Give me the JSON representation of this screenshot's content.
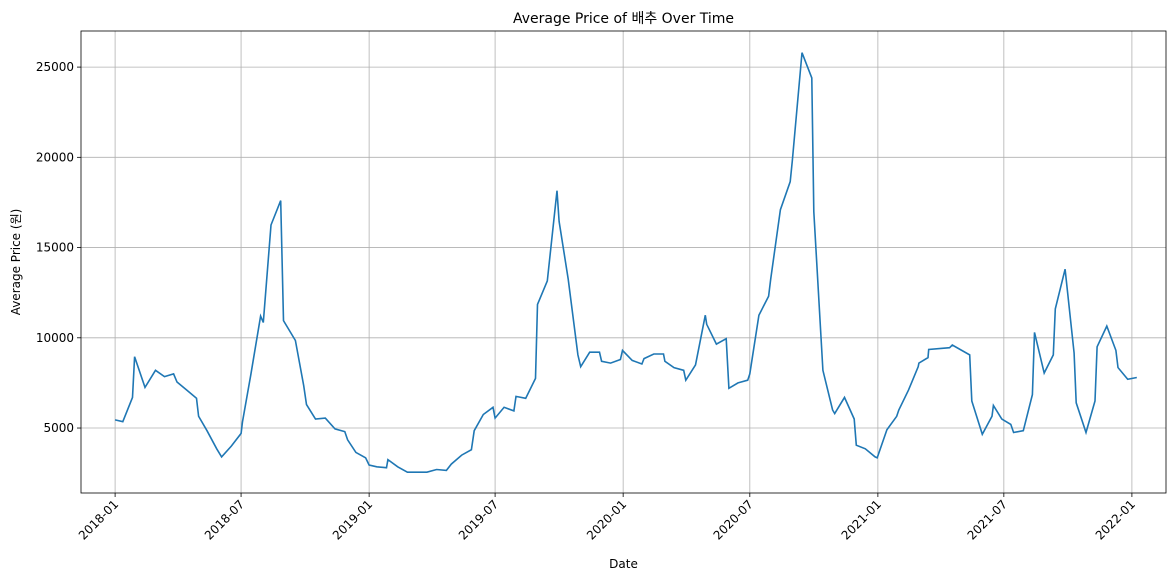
{
  "chart_data": {
    "type": "line",
    "title": "Average Price of 배추 Over Time",
    "xlabel": "Date",
    "ylabel": "Average Price (원)",
    "x_ticks": [
      "2018-01",
      "2018-07",
      "2019-01",
      "2019-07",
      "2020-01",
      "2020-07",
      "2021-01",
      "2021-07",
      "2022-01"
    ],
    "x_tick_dates": [
      "2018-01-01",
      "2018-07-01",
      "2019-01-01",
      "2019-07-01",
      "2020-01-01",
      "2020-07-01",
      "2021-01-01",
      "2021-07-01",
      "2022-01-01"
    ],
    "y_ticks": [
      5000,
      10000,
      15000,
      20000,
      25000
    ],
    "xlim": [
      "2017-11-13",
      "2022-02-19"
    ],
    "ylim": [
      1400,
      27000
    ],
    "grid": true,
    "line_color": "#1f77b4",
    "series": [
      {
        "points": [
          [
            "2018-01-01",
            5450
          ],
          [
            "2018-01-12",
            5350
          ],
          [
            "2018-01-26",
            6700
          ],
          [
            "2018-01-29",
            8950
          ],
          [
            "2018-02-13",
            7250
          ],
          [
            "2018-02-28",
            8200
          ],
          [
            "2018-03-13",
            7850
          ],
          [
            "2018-03-26",
            8000
          ],
          [
            "2018-03-31",
            7550
          ],
          [
            "2018-04-14",
            7100
          ],
          [
            "2018-04-28",
            6650
          ],
          [
            "2018-05-01",
            5650
          ],
          [
            "2018-05-13",
            4850
          ],
          [
            "2018-05-27",
            3850
          ],
          [
            "2018-06-03",
            3400
          ],
          [
            "2018-06-17",
            4000
          ],
          [
            "2018-07-01",
            4700
          ],
          [
            "2018-07-03",
            5350
          ],
          [
            "2018-07-15",
            7950
          ],
          [
            "2018-07-29",
            11200
          ],
          [
            "2018-08-02",
            10850
          ],
          [
            "2018-08-13",
            16250
          ],
          [
            "2018-08-27",
            17600
          ],
          [
            "2018-08-31",
            10950
          ],
          [
            "2018-09-17",
            9850
          ],
          [
            "2018-09-29",
            7350
          ],
          [
            "2018-10-03",
            6300
          ],
          [
            "2018-10-16",
            5500
          ],
          [
            "2018-10-30",
            5550
          ],
          [
            "2018-11-13",
            4950
          ],
          [
            "2018-11-27",
            4800
          ],
          [
            "2018-12-01",
            4350
          ],
          [
            "2018-12-13",
            3650
          ],
          [
            "2018-12-27",
            3350
          ],
          [
            "2019-01-01",
            2950
          ],
          [
            "2019-01-12",
            2850
          ],
          [
            "2019-01-26",
            2800
          ],
          [
            "2019-01-28",
            3250
          ],
          [
            "2019-02-11",
            2850
          ],
          [
            "2019-02-25",
            2550
          ],
          [
            "2019-03-11",
            2550
          ],
          [
            "2019-03-25",
            2550
          ],
          [
            "2019-04-08",
            2700
          ],
          [
            "2019-04-22",
            2650
          ],
          [
            "2019-04-29",
            3000
          ],
          [
            "2019-05-14",
            3500
          ],
          [
            "2019-05-28",
            3800
          ],
          [
            "2019-06-01",
            4850
          ],
          [
            "2019-06-14",
            5750
          ],
          [
            "2019-06-28",
            6150
          ],
          [
            "2019-07-01",
            5550
          ],
          [
            "2019-07-14",
            6150
          ],
          [
            "2019-07-28",
            5950
          ],
          [
            "2019-07-31",
            6750
          ],
          [
            "2019-08-14",
            6650
          ],
          [
            "2019-08-28",
            7750
          ],
          [
            "2019-08-31",
            11850
          ],
          [
            "2019-09-14",
            13150
          ],
          [
            "2019-09-28",
            18150
          ],
          [
            "2019-10-01",
            16450
          ],
          [
            "2019-10-14",
            13250
          ],
          [
            "2019-10-28",
            9050
          ],
          [
            "2019-11-01",
            8400
          ],
          [
            "2019-11-14",
            9200
          ],
          [
            "2019-11-28",
            9200
          ],
          [
            "2019-12-01",
            8700
          ],
          [
            "2019-12-14",
            8600
          ],
          [
            "2019-12-28",
            8800
          ],
          [
            "2019-12-31",
            9300
          ],
          [
            "2020-01-14",
            8750
          ],
          [
            "2020-01-28",
            8550
          ],
          [
            "2020-01-31",
            8850
          ],
          [
            "2020-02-14",
            9100
          ],
          [
            "2020-02-28",
            9100
          ],
          [
            "2020-03-01",
            8700
          ],
          [
            "2020-03-14",
            8350
          ],
          [
            "2020-03-28",
            8200
          ],
          [
            "2020-03-31",
            7650
          ],
          [
            "2020-04-14",
            8500
          ],
          [
            "2020-04-28",
            11250
          ],
          [
            "2020-04-30",
            10750
          ],
          [
            "2020-05-14",
            9650
          ],
          [
            "2020-05-28",
            9950
          ],
          [
            "2020-06-01",
            7200
          ],
          [
            "2020-06-14",
            7500
          ],
          [
            "2020-06-28",
            7650
          ],
          [
            "2020-07-01",
            8000
          ],
          [
            "2020-07-14",
            11250
          ],
          [
            "2020-07-28",
            12300
          ],
          [
            "2020-07-31",
            13250
          ],
          [
            "2020-08-14",
            17100
          ],
          [
            "2020-08-28",
            18650
          ],
          [
            "2020-08-31",
            19800
          ],
          [
            "2020-09-14",
            25800
          ],
          [
            "2020-09-28",
            24400
          ],
          [
            "2020-10-01",
            17000
          ],
          [
            "2020-10-14",
            8200
          ],
          [
            "2020-10-28",
            6000
          ],
          [
            "2020-10-31",
            5800
          ],
          [
            "2020-11-14",
            6700
          ],
          [
            "2020-11-28",
            5500
          ],
          [
            "2020-12-01",
            4050
          ],
          [
            "2020-12-14",
            3850
          ],
          [
            "2020-12-28",
            3400
          ],
          [
            "2020-12-31",
            3350
          ],
          [
            "2021-01-14",
            4900
          ],
          [
            "2021-01-28",
            5650
          ],
          [
            "2021-01-31",
            6000
          ],
          [
            "2021-02-14",
            7100
          ],
          [
            "2021-02-28",
            8400
          ],
          [
            "2021-03-01",
            8600
          ],
          [
            "2021-03-14",
            8900
          ],
          [
            "2021-03-15",
            9350
          ],
          [
            "2021-04-14",
            9450
          ],
          [
            "2021-04-18",
            9600
          ],
          [
            "2021-05-13",
            9050
          ],
          [
            "2021-05-16",
            6500
          ],
          [
            "2021-05-31",
            4650
          ],
          [
            "2021-06-14",
            5650
          ],
          [
            "2021-06-16",
            6250
          ],
          [
            "2021-06-28",
            5500
          ],
          [
            "2021-07-11",
            5200
          ],
          [
            "2021-07-15",
            4750
          ],
          [
            "2021-07-29",
            4850
          ],
          [
            "2021-08-11",
            6850
          ],
          [
            "2021-08-14",
            10300
          ],
          [
            "2021-08-28",
            8050
          ],
          [
            "2021-09-10",
            9050
          ],
          [
            "2021-09-13",
            11600
          ],
          [
            "2021-09-27",
            13800
          ],
          [
            "2021-10-10",
            9150
          ],
          [
            "2021-10-13",
            6400
          ],
          [
            "2021-10-27",
            4750
          ],
          [
            "2021-11-09",
            6500
          ],
          [
            "2021-11-12",
            9500
          ],
          [
            "2021-11-26",
            10650
          ],
          [
            "2021-12-09",
            9300
          ],
          [
            "2021-12-12",
            8350
          ],
          [
            "2021-12-26",
            7700
          ],
          [
            "2022-01-08",
            7800
          ]
        ]
      }
    ]
  }
}
